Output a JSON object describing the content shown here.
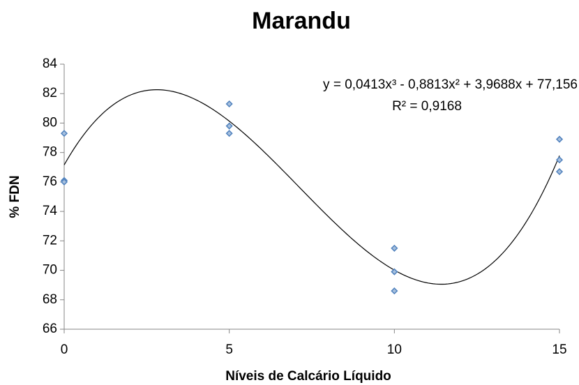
{
  "chart_data": {
    "type": "scatter",
    "title": "Marandu",
    "x_label": "Níveis de Calcário Líquido",
    "y_label": "% FDN",
    "xlim": [
      0,
      15
    ],
    "xticks": [
      0,
      5,
      10,
      15
    ],
    "ylim": [
      66,
      84
    ],
    "yticks": [
      66,
      68,
      70,
      72,
      74,
      76,
      78,
      80,
      82,
      84
    ],
    "series": [
      {
        "name": "FDN",
        "color": "#4f81bd",
        "x": [
          0,
          0,
          0,
          5,
          5,
          5,
          10,
          10,
          10,
          15,
          15,
          15
        ],
        "values": [
          79.3,
          76.1,
          76.0,
          81.3,
          79.8,
          79.3,
          71.5,
          69.9,
          68.6,
          78.9,
          77.5,
          76.7
        ]
      }
    ],
    "trendline": {
      "coefficients": [
        0.0413,
        -0.8813,
        3.9688,
        77.156
      ],
      "equation": "y = 0,0413x³ - 0,8813x² + 3,9688x + 77,156",
      "r_squared": "R² = 0,9168"
    },
    "grid": false
  }
}
